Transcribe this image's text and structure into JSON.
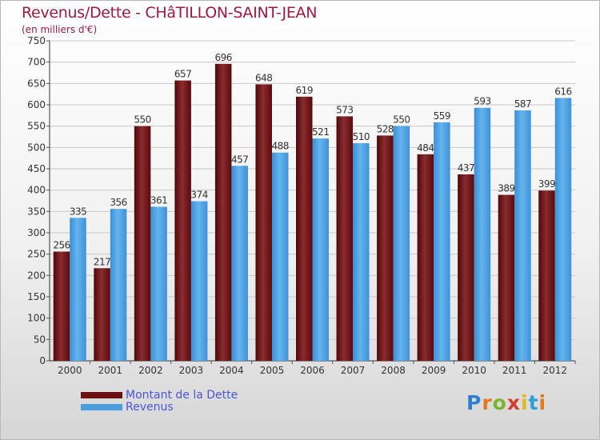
{
  "title": "Revenus/Dette - CHâTILLON-SAINT-JEAN",
  "subtitle": "(en milliers d'€)",
  "colors": {
    "dette": "#6e0f12",
    "revenus": "#4a9ee0",
    "title": "#9b1b3f",
    "legend_text": "#4a55d8"
  },
  "legend": [
    {
      "label": "Montant de la Dette",
      "color": "#6e0f12"
    },
    {
      "label": "Revenus",
      "color": "#4a9ee0"
    }
  ],
  "brand": "Proxiti",
  "chart_data": {
    "type": "bar",
    "title": "Revenus/Dette - CHâTILLON-SAINT-JEAN",
    "subtitle": "(en milliers d'€)",
    "xlabel": "",
    "ylabel": "",
    "ylim": [
      0,
      750
    ],
    "yticks": [
      0,
      50,
      100,
      150,
      200,
      250,
      300,
      350,
      400,
      450,
      500,
      550,
      600,
      650,
      700,
      750
    ],
    "grid": true,
    "legend_position": "bottom-left",
    "categories": [
      "2000",
      "2001",
      "2002",
      "2003",
      "2004",
      "2005",
      "2006",
      "2007",
      "2008",
      "2009",
      "2010",
      "2011",
      "2012"
    ],
    "series": [
      {
        "name": "Montant de la Dette",
        "values": [
          256,
          217,
          550,
          657,
          696,
          648,
          619,
          573,
          528,
          484,
          437,
          389,
          399
        ]
      },
      {
        "name": "Revenus",
        "values": [
          335,
          356,
          361,
          374,
          457,
          488,
          521,
          510,
          550,
          559,
          593,
          587,
          616
        ]
      }
    ]
  }
}
